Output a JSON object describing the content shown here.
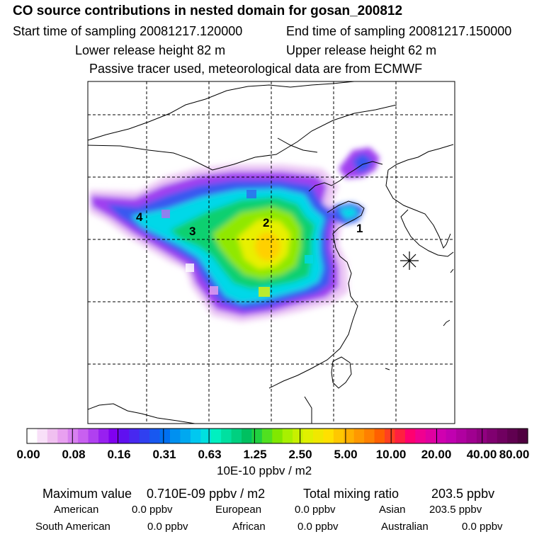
{
  "header": {
    "title": "CO  source contributions in nested domain for gosan_200812",
    "start_time": "Start time of sampling 20081217.120000",
    "end_time": "End time of sampling 20081217.150000",
    "lower_height": "Lower release height   82 m",
    "upper_height": "Upper release height   62 m",
    "tracer_note": "Passive tracer used, meteorological data are from ECMWF"
  },
  "map": {
    "markers": [
      {
        "label": "1",
        "name": "marker-1"
      },
      {
        "label": "2",
        "name": "marker-2"
      },
      {
        "label": "3",
        "name": "marker-3"
      },
      {
        "label": "4",
        "name": "marker-4"
      }
    ],
    "receptor_symbol": "star-receptor"
  },
  "colorbar": {
    "ticks": [
      "0.00",
      "0.08",
      "0.16",
      "0.31",
      "0.63",
      "1.25",
      "2.50",
      "5.00",
      "10.00",
      "20.00",
      "40.00",
      "80.00"
    ],
    "colors": [
      "#ffffff",
      "#f8e0f8",
      "#f0c0f0",
      "#e8a0f0",
      "#d880f0",
      "#c860f0",
      "#b040f0",
      "#9820f0",
      "#8000f0",
      "#6010f0",
      "#4828f0",
      "#3040f0",
      "#1858f0",
      "#0070f0",
      "#0090f0",
      "#00a8f0",
      "#00c8f0",
      "#00e0e0",
      "#00f0c0",
      "#00e0a0",
      "#00d080",
      "#00c060",
      "#20d040",
      "#50e020",
      "#80e800",
      "#a8f000",
      "#c8f000",
      "#e0f000",
      "#f0e800",
      "#ffe000",
      "#ffc800",
      "#ffb000",
      "#ff9800",
      "#ff8000",
      "#ff6000",
      "#ff4020",
      "#ff2040",
      "#ff0070",
      "#f00090",
      "#e000a0",
      "#d000b0",
      "#c000b0",
      "#b000a0",
      "#a00090",
      "#900080",
      "#800070",
      "#700060",
      "#600050",
      "#500040"
    ],
    "units": "10E-10 ppbv / m2"
  },
  "summary": {
    "max_label": "Maximum value",
    "max_value": "0.710E-09 ppbv / m2",
    "total_label": "Total mixing ratio",
    "total_value": "203.5 ppbv",
    "regions": [
      {
        "name": "American",
        "value": "0.0 ppbv"
      },
      {
        "name": "European",
        "value": "0.0 ppbv"
      },
      {
        "name": "Asian",
        "value": "203.5 ppbv"
      },
      {
        "name": "South American",
        "value": "0.0 ppbv"
      },
      {
        "name": "African",
        "value": "0.0 ppbv"
      },
      {
        "name": "Australian",
        "value": "0.0 ppbv"
      }
    ]
  }
}
